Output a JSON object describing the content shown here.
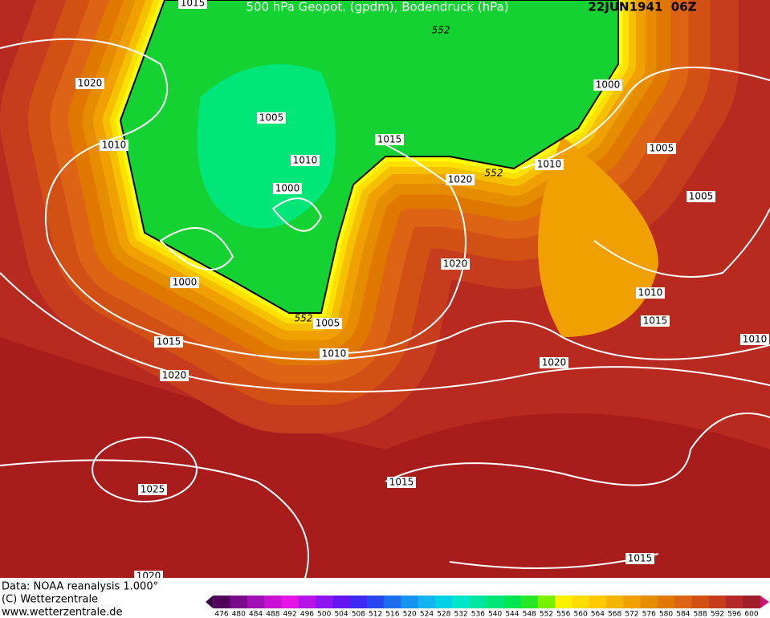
{
  "header": {
    "title": "500 hPa Geopot. (gpdm), Bodendruck (hPa)",
    "date": "22JUN1941  06Z"
  },
  "isobar_labels": [
    "1020",
    "1010",
    "1005",
    "1010",
    "1000",
    "1000",
    "1015",
    "1020",
    "1025",
    "1015",
    "1005",
    "1010",
    "1015",
    "1020",
    "1015",
    "1020",
    "1010",
    "1020",
    "1000",
    "1005",
    "1005",
    "1010",
    "1015",
    "1010",
    "1020",
    "1015",
    "552",
    "552",
    "552"
  ],
  "footer": {
    "source": "Data: NOAA reanalysis 1.000°",
    "copyright": "(C) Wetterzentrale",
    "url": "www.wetterzentrale.de"
  },
  "colorbar": {
    "levels": [
      476,
      480,
      484,
      488,
      492,
      496,
      500,
      504,
      508,
      512,
      516,
      520,
      524,
      528,
      532,
      536,
      540,
      544,
      548,
      552,
      556,
      560,
      564,
      568,
      572,
      576,
      580,
      584,
      588,
      592,
      596,
      600
    ],
    "colors": [
      "#50005a",
      "#7a0a8c",
      "#a010b4",
      "#c814d2",
      "#e614e6",
      "#b414e6",
      "#8c14f0",
      "#6414f0",
      "#3c28f0",
      "#2846f0",
      "#1e6ef0",
      "#1496f0",
      "#14b4f0",
      "#00d2e6",
      "#00e6c8",
      "#00e6a0",
      "#00e678",
      "#00e650",
      "#28e628",
      "#78f000",
      "#fff000",
      "#ffdc00",
      "#ffc800",
      "#f5b400",
      "#f0a000",
      "#e68c00",
      "#e07800",
      "#dc6414",
      "#d25014",
      "#c83c1e",
      "#b42828",
      "#a01e28"
    ]
  }
}
